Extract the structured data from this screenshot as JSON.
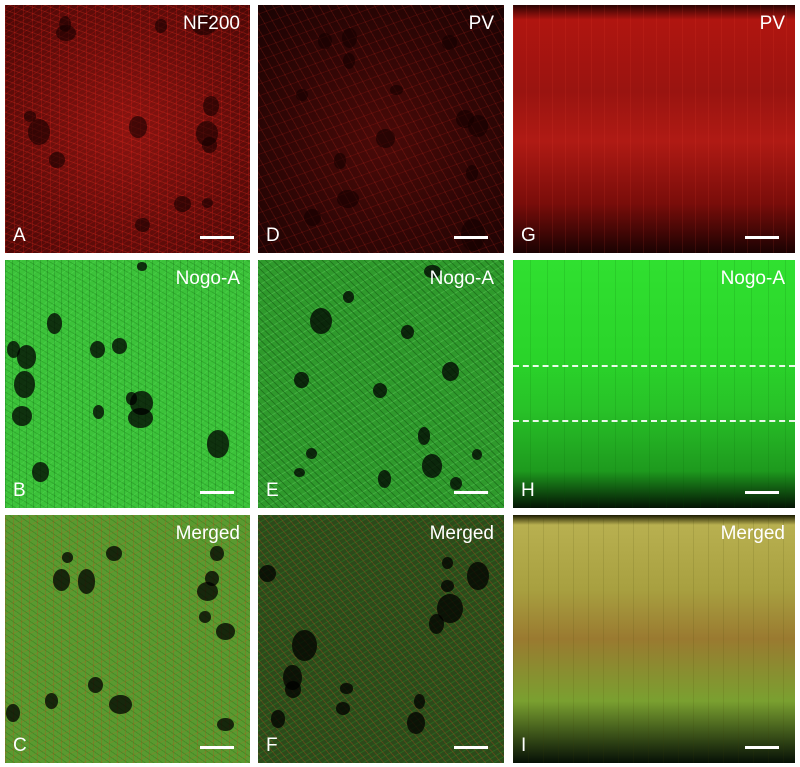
{
  "panels": [
    {
      "letter": "A",
      "stain": "NF200"
    },
    {
      "letter": "B",
      "stain": "Nogo-A"
    },
    {
      "letter": "C",
      "stain": "Merged"
    },
    {
      "letter": "D",
      "stain": "PV"
    },
    {
      "letter": "E",
      "stain": "Nogo-A"
    },
    {
      "letter": "F",
      "stain": "Merged"
    },
    {
      "letter": "G",
      "stain": "PV"
    },
    {
      "letter": "H",
      "stain": "Nogo-A"
    },
    {
      "letter": "I",
      "stain": "Merged"
    }
  ]
}
